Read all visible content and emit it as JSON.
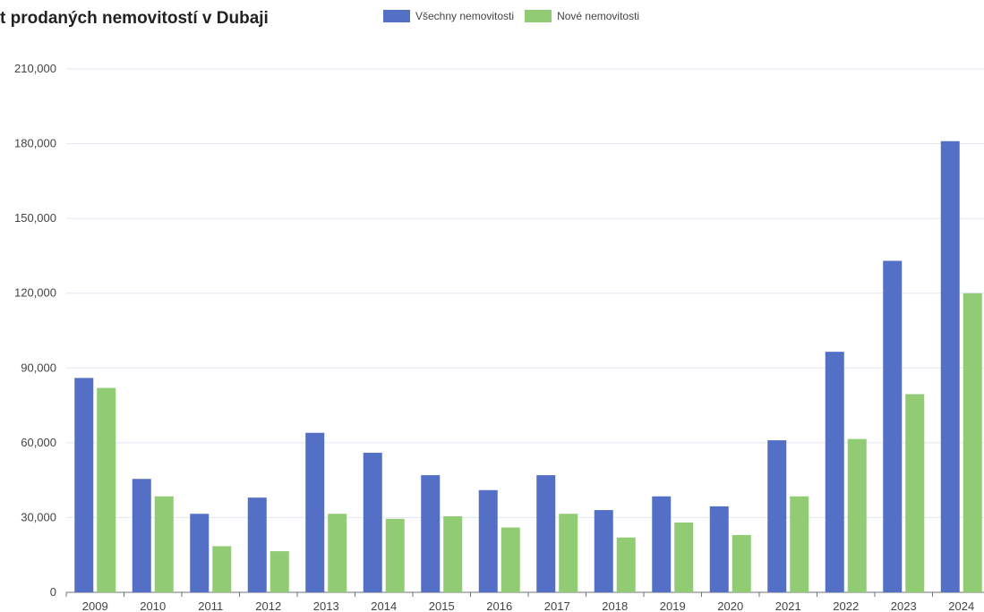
{
  "chart_data": {
    "type": "bar",
    "title": "t prodaných nemovitostí v Dubaji",
    "categories": [
      "2009",
      "2010",
      "2011",
      "2012",
      "2013",
      "2014",
      "2015",
      "2016",
      "2017",
      "2018",
      "2019",
      "2020",
      "2021",
      "2022",
      "2023",
      "2024"
    ],
    "series": [
      {
        "name": "Všechny nemovitosti",
        "color": "#5470c6",
        "values": [
          86000,
          45500,
          31500,
          38000,
          64000,
          56000,
          47000,
          41000,
          47000,
          33000,
          38500,
          34500,
          61000,
          96500,
          133000,
          181000
        ]
      },
      {
        "name": "Nové nemovitosti",
        "color": "#91cc75",
        "values": [
          82000,
          38500,
          18500,
          16500,
          31500,
          29500,
          30500,
          26000,
          31500,
          22000,
          28000,
          23000,
          38500,
          61500,
          79500,
          120000
        ]
      }
    ],
    "yticks": [
      "0",
      "30,000",
      "60,000",
      "90,000",
      "120,000",
      "150,000",
      "180,000",
      "210,000"
    ],
    "ylim": [
      0,
      210000
    ],
    "xlabel": "",
    "ylabel": "",
    "grid": true,
    "legend_position": "top"
  }
}
